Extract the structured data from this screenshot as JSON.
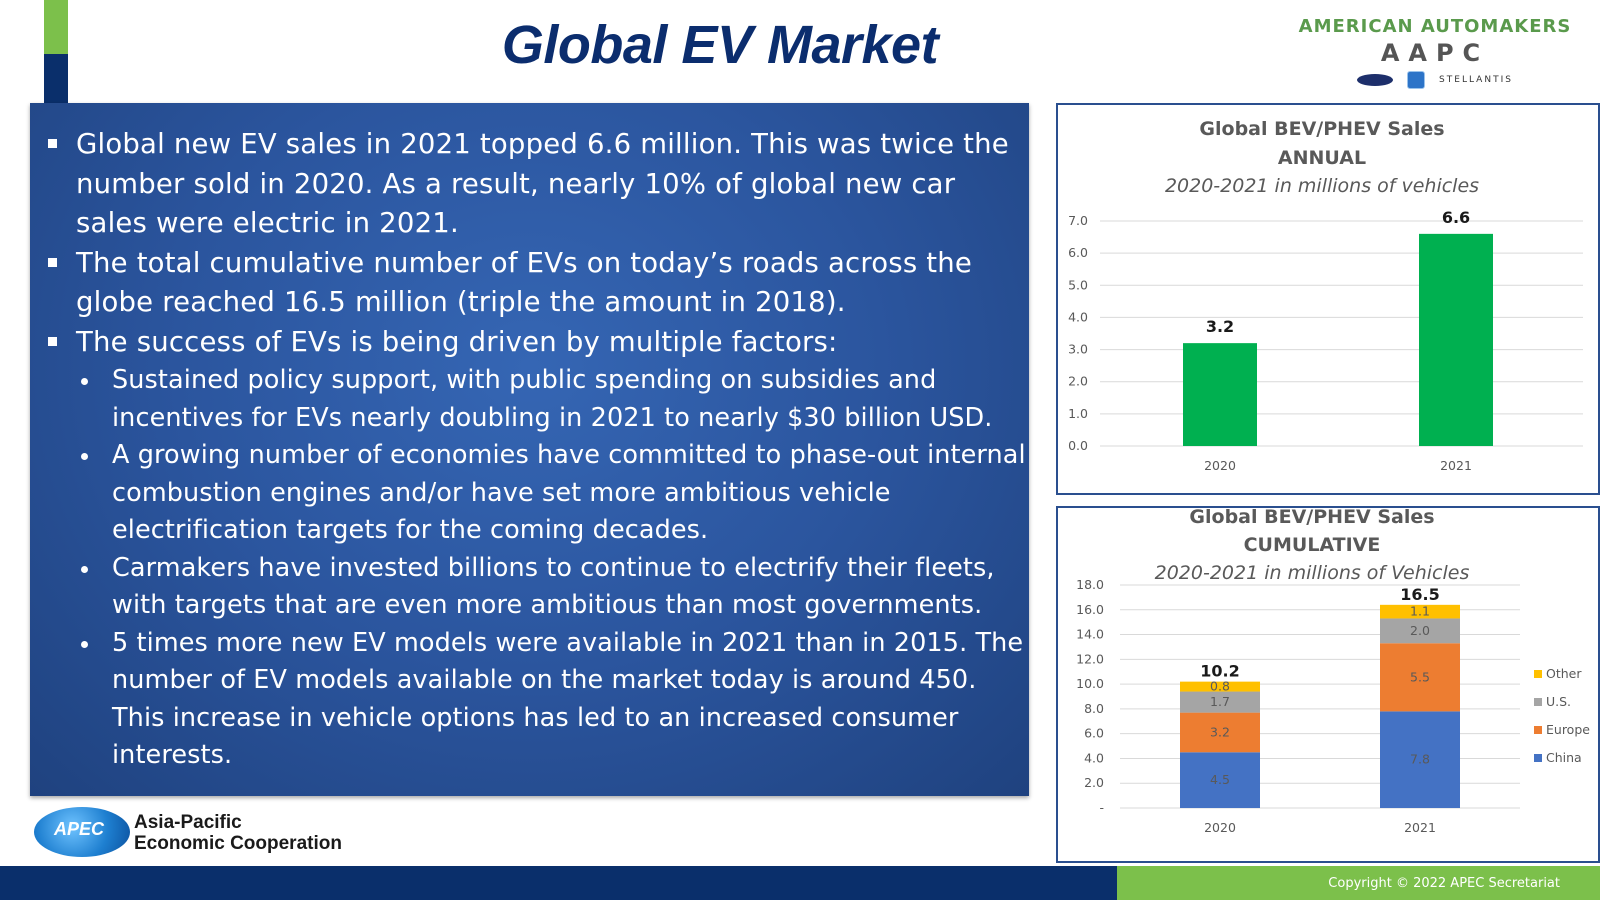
{
  "slide": {
    "title": "Global EV Market",
    "logo": {
      "top": "AMERICAN AUTOMAKERS",
      "mid": "AAPC",
      "brand": "STELLANTIS"
    },
    "apec": {
      "badge": "APEC",
      "line1": "Asia-Pacific",
      "line2": "Economic Cooperation"
    },
    "copyright": "Copyright © 2022 APEC Secretariat",
    "colors": {
      "navy": "#0a2f6b",
      "green": "#7cc04b",
      "panel": "#2b559e"
    }
  },
  "bullets": [
    {
      "level": 1,
      "text": "Global new EV sales in 2021 topped 6.6 million.  This was twice the number sold in 2020. As a result, nearly 10% of global new car sales were electric in 2021."
    },
    {
      "level": 1,
      "text": "The total cumulative number of EVs on today’s roads across the globe reached 16.5 million (triple the amount in 2018)."
    },
    {
      "level": 1,
      "text": "The success of EVs is being driven by multiple factors:"
    },
    {
      "level": 2,
      "text": "Sustained policy support, with public spending on subsidies and incentives for EVs nearly doubling in 2021 to nearly $30 billion USD."
    },
    {
      "level": 2,
      "text": "A growing number of economies have committed to phase-out internal combustion engines and/or have set more ambitious vehicle electrification targets for the coming decades."
    },
    {
      "level": 2,
      "text": "Carmakers have invested billions to continue to electrify their fleets, with targets that are even more ambitious than most governments."
    },
    {
      "level": 2,
      "text": "5 times more new EV models were available in 2021 than in 2015. The number of EV models available on the market today is around 450. This increase in vehicle options has led to an increased consumer interests."
    }
  ],
  "chart_data": [
    {
      "type": "bar",
      "title": "Global BEV/PHEV Sales",
      "title2": "ANNUAL",
      "subtitle": "2020-2021 in millions of vehicles",
      "categories": [
        "2020",
        "2021"
      ],
      "values": [
        3.2,
        6.6
      ],
      "value_labels": [
        "3.2",
        "6.6"
      ],
      "ylim": [
        0,
        7
      ],
      "yticks": [
        "0.0",
        "1.0",
        "2.0",
        "3.0",
        "4.0",
        "5.0",
        "6.0",
        "7.0"
      ],
      "color": "#00b050",
      "grid": true
    },
    {
      "type": "bar",
      "stacked": true,
      "title": "Global BEV/PHEV Sales",
      "title2": "CUMULATIVE",
      "subtitle": "2020-2021 in millions of Vehicles",
      "categories": [
        "2020",
        "2021"
      ],
      "series": [
        {
          "name": "China",
          "values": [
            4.5,
            7.8
          ],
          "labels": [
            "4.5",
            "7.8"
          ],
          "color": "#4472c4"
        },
        {
          "name": "Europe",
          "values": [
            3.2,
            5.5
          ],
          "labels": [
            "3.2",
            "5.5"
          ],
          "color": "#ed7d31"
        },
        {
          "name": "U.S.",
          "values": [
            1.7,
            2.0
          ],
          "labels": [
            "1.7",
            "2.0"
          ],
          "color": "#a5a5a5"
        },
        {
          "name": "Other",
          "values": [
            0.8,
            1.1
          ],
          "labels": [
            "0.8",
            "1.1"
          ],
          "color": "#ffc000"
        }
      ],
      "totals": [
        "10.2",
        "16.5"
      ],
      "ylim": [
        0,
        18
      ],
      "yticks": [
        "-",
        "2.0",
        "4.0",
        "6.0",
        "8.0",
        "10.0",
        "12.0",
        "14.0",
        "16.0",
        "18.0"
      ],
      "legend": "right",
      "grid": true
    }
  ]
}
